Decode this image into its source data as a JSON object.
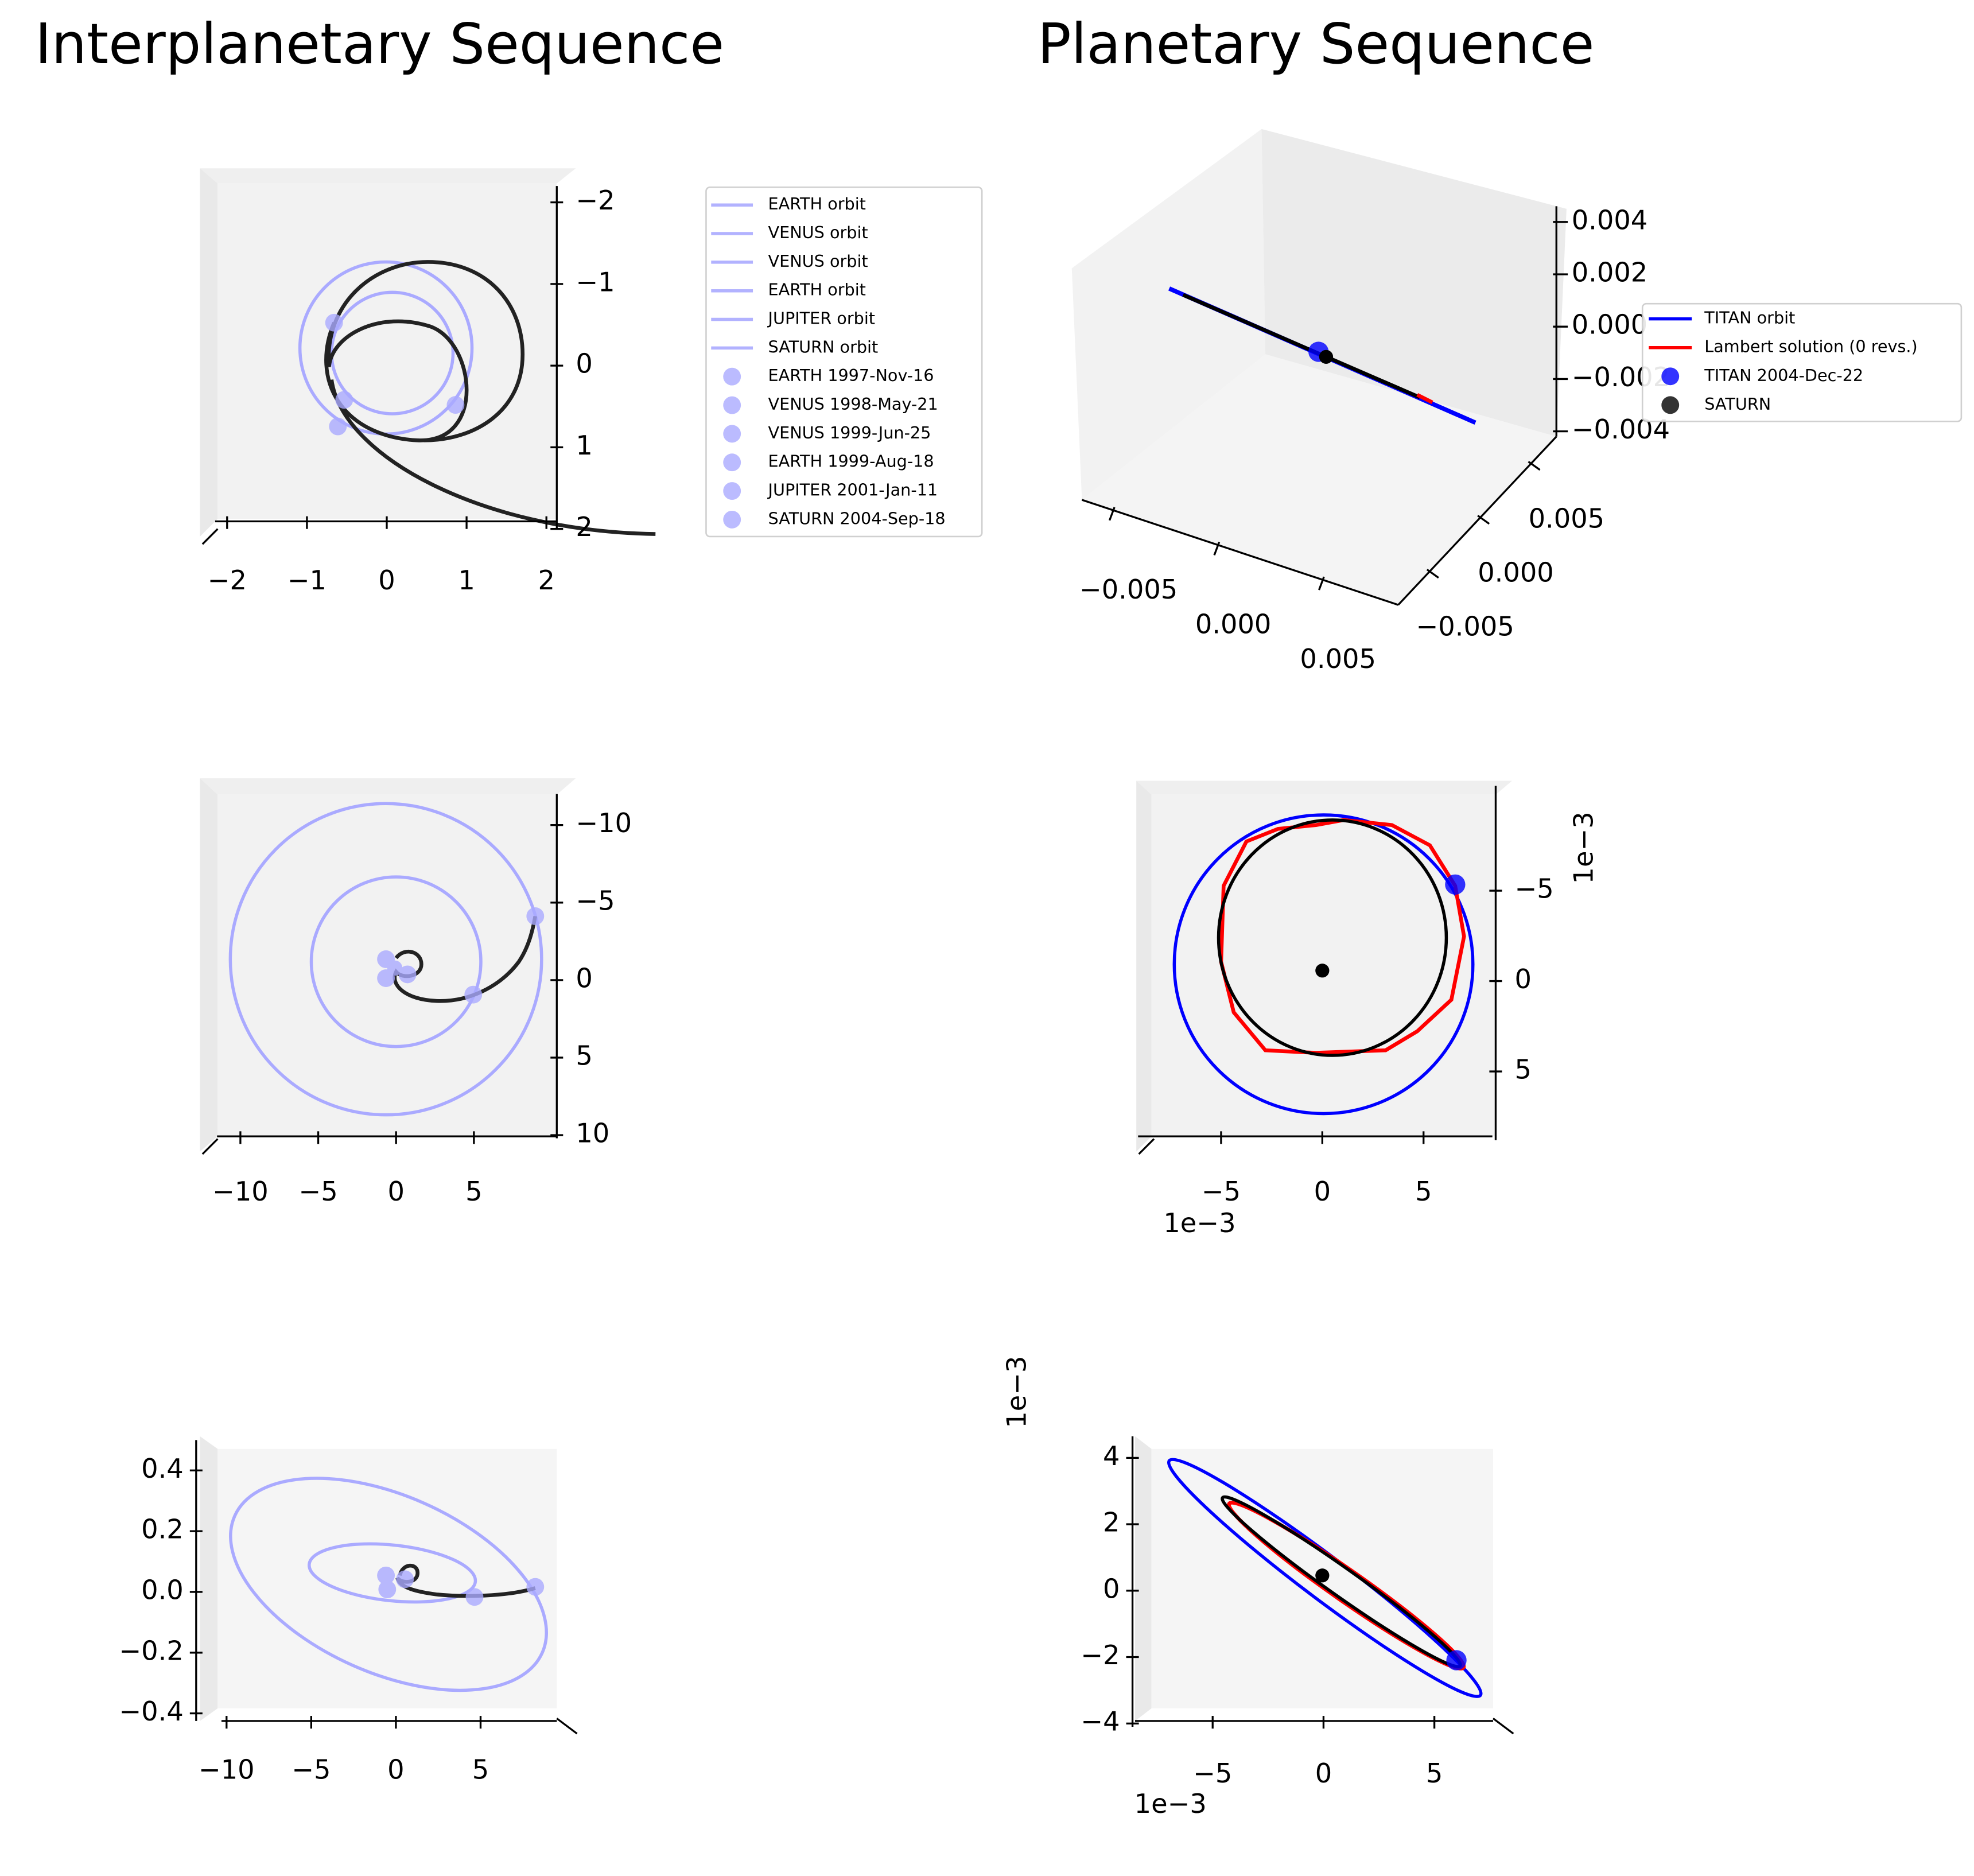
{
  "chart_data": [
    {
      "type": "line",
      "title": "Interplanetary Sequence",
      "xlim": [
        -2.15,
        2.13
      ],
      "ylim": [
        -2.2,
        2.0
      ],
      "xticks": [
        {
          "value": -2,
          "label": "−2"
        },
        {
          "value": -1,
          "label": "−1"
        },
        0,
        1,
        2
      ],
      "yticks": [
        {
          "value": -2,
          "label": "−2"
        },
        {
          "value": -1,
          "label": "−1"
        },
        0,
        1,
        2
      ],
      "legend": [
        {
          "name": "EARTH orbit",
          "color": "#aaaaff",
          "kind": "line"
        },
        {
          "name": "VENUS orbit",
          "color": "#aaaaff",
          "kind": "line"
        },
        {
          "name": "VENUS orbit",
          "color": "#aaaaff",
          "kind": "line"
        },
        {
          "name": "EARTH orbit",
          "color": "#aaaaff",
          "kind": "line"
        },
        {
          "name": "JUPITER orbit",
          "color": "#aaaaff",
          "kind": "line"
        },
        {
          "name": "SATURN orbit",
          "color": "#aaaaff",
          "kind": "line"
        },
        {
          "name": "EARTH 1997-Nov-16",
          "color": "#aaaaff",
          "kind": "point"
        },
        {
          "name": "VENUS 1998-May-21",
          "color": "#aaaaff",
          "kind": "point"
        },
        {
          "name": "VENUS 1999-Jun-25",
          "color": "#aaaaff",
          "kind": "point"
        },
        {
          "name": "EARTH 1999-Aug-18",
          "color": "#aaaaff",
          "kind": "point"
        },
        {
          "name": "JUPITER 2001-Jan-11",
          "color": "#aaaaff",
          "kind": "point"
        },
        {
          "name": "SATURN 2004-Sep-18",
          "color": "#aaaaff",
          "kind": "point"
        }
      ]
    },
    {
      "type": "line",
      "xlim": [
        -11.5,
        10.3
      ],
      "ylim": [
        -12,
        10.2
      ],
      "xticks": [
        {
          "value": -10,
          "label": "−10"
        },
        {
          "value": -5,
          "label": "−5"
        },
        0,
        5
      ],
      "yticks": [
        {
          "value": -10,
          "label": "−10"
        },
        {
          "value": -5,
          "label": "−5"
        },
        0,
        5,
        10
      ]
    },
    {
      "type": "line",
      "xlim": [
        -10.3,
        9.5
      ],
      "ylim": [
        -0.425,
        0.5
      ],
      "xticks": [
        {
          "value": -10,
          "label": "−10"
        },
        {
          "value": -5,
          "label": "−5"
        },
        0,
        5
      ],
      "yticks": [
        {
          "value": -0.4,
          "label": "−0.4"
        },
        {
          "value": -0.2,
          "label": "−0.2"
        },
        {
          "value": 0,
          "label": "0.0"
        },
        0.2,
        0.4
      ]
    },
    {
      "type": "line3d",
      "title": "Planetary Sequence",
      "xlim": [
        -0.0065,
        0.0086
      ],
      "ylim": [
        -0.0081,
        0.0075
      ],
      "zlim": [
        -0.0042,
        0.0046
      ],
      "xticks": [
        {
          "value": -0.005,
          "label": "−0.005"
        },
        {
          "value": 0,
          "label": "0.000"
        },
        0.005
      ],
      "yticks": [
        {
          "value": -0.005,
          "label": "−0.005"
        },
        {
          "value": 0,
          "label": "0.000"
        },
        0.005
      ],
      "zticks": [
        {
          "value": -0.004,
          "label": "−0.004"
        },
        {
          "value": -0.002,
          "label": "−0.002"
        },
        {
          "value": 0,
          "label": "0.000"
        },
        0.002,
        0.004
      ],
      "legend": [
        {
          "name": "TITAN orbit",
          "color": "#0000ff",
          "kind": "line"
        },
        {
          "name": "Lambert solution (0 revs.)",
          "color": "#ff0000",
          "kind": "line"
        },
        {
          "name": "TITAN 2004-Dec-22",
          "color": "#0000ff",
          "kind": "point"
        },
        {
          "name": "SATURN",
          "color": "#000000",
          "kind": "point"
        }
      ]
    },
    {
      "type": "line",
      "xlim": [
        -9.1,
        8.4
      ],
      "ylim": [
        -10.8,
        8.8
      ],
      "xticks": [
        {
          "value": -5,
          "label": "−5"
        },
        0,
        5
      ],
      "yticks": [
        {
          "value": -5,
          "label": "−5"
        },
        0,
        5
      ],
      "x_offset_label": "1e−3",
      "y_offset_label": "1e−3"
    },
    {
      "type": "line",
      "xlim": [
        -8.5,
        7.65
      ],
      "ylim": [
        -4.1,
        4.65
      ],
      "xticks": [
        {
          "value": -5,
          "label": "−5"
        },
        0,
        5
      ],
      "yticks": [
        {
          "value": -4,
          "label": "−4"
        },
        {
          "value": -2,
          "label": "−2"
        },
        0,
        2,
        4
      ],
      "x_offset_label": "1e−3",
      "y_offset_label": "1e−3"
    }
  ]
}
